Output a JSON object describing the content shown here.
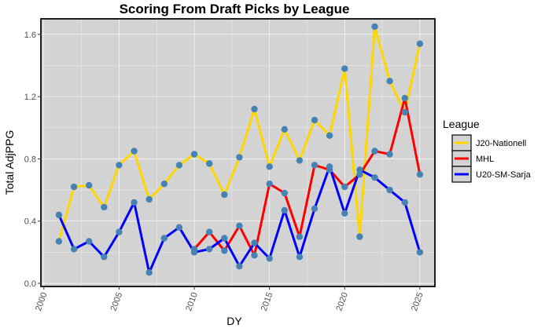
{
  "chart_data": {
    "type": "line",
    "title": "Scoring From Draft Picks by League",
    "xlabel": "DY",
    "ylabel": "Total AdjPPG",
    "xlim": [
      1999.8,
      2026.0
    ],
    "ylim": [
      -0.02,
      1.7
    ],
    "x_ticks": [
      2000,
      2005,
      2010,
      2015,
      2020,
      2025
    ],
    "x_tick_labels": [
      "2000",
      "2005",
      "2010",
      "2015",
      "2020",
      "2025"
    ],
    "y_ticks": [
      0.0,
      0.4,
      0.8,
      1.2,
      1.6
    ],
    "y_tick_labels": [
      "0.0",
      "0.4",
      "0.8",
      "1.2",
      "1.6"
    ],
    "grid": true,
    "legend_title": "League",
    "legend_position": "right",
    "point_color": "#4682b4",
    "panel_background": "#d3d3d3",
    "series": [
      {
        "name": "J20-Nationell",
        "color": "#ffd700",
        "points": [
          [
            2001,
            0.27
          ],
          [
            2002,
            0.62
          ],
          [
            2003,
            0.63
          ],
          [
            2004,
            0.49
          ],
          [
            2005,
            0.76
          ],
          [
            2006,
            0.85
          ],
          [
            2007,
            0.54
          ],
          [
            2008,
            0.64
          ],
          [
            2009,
            0.76
          ],
          [
            2010,
            0.83
          ],
          [
            2011,
            0.77
          ],
          [
            2012,
            0.57
          ],
          [
            2013,
            0.81
          ],
          [
            2014,
            1.12
          ],
          [
            2015,
            0.75
          ],
          [
            2016,
            0.99
          ],
          [
            2017,
            0.79
          ],
          [
            2018,
            1.05
          ],
          [
            2019,
            0.95
          ],
          [
            2020,
            1.38
          ],
          [
            2021,
            0.3
          ],
          [
            2022,
            1.65
          ],
          [
            2023,
            1.3
          ],
          [
            2024,
            1.1
          ],
          [
            2025,
            1.54
          ]
        ]
      },
      {
        "name": "MHL",
        "color": "#ff0000",
        "points": [
          [
            2010,
            0.22
          ],
          [
            2011,
            0.33
          ],
          [
            2012,
            0.21
          ],
          [
            2013,
            0.37
          ],
          [
            2014,
            0.18
          ],
          [
            2015,
            0.64
          ],
          [
            2016,
            0.58
          ],
          [
            2017,
            0.3
          ],
          [
            2018,
            0.76
          ],
          [
            2019,
            0.73
          ],
          [
            2020,
            0.62
          ],
          [
            2021,
            0.7
          ],
          [
            2022,
            0.85
          ],
          [
            2023,
            0.83
          ],
          [
            2024,
            1.19
          ],
          [
            2025,
            0.7
          ]
        ]
      },
      {
        "name": "U20-SM-Sarja",
        "color": "#0000ff",
        "points": [
          [
            2001,
            0.44
          ],
          [
            2002,
            0.22
          ],
          [
            2003,
            0.27
          ],
          [
            2004,
            0.17
          ],
          [
            2005,
            0.33
          ],
          [
            2006,
            0.52
          ],
          [
            2007,
            0.07
          ],
          [
            2008,
            0.29
          ],
          [
            2009,
            0.36
          ],
          [
            2010,
            0.2
          ],
          [
            2011,
            0.22
          ],
          [
            2012,
            0.29
          ],
          [
            2013,
            0.11
          ],
          [
            2014,
            0.26
          ],
          [
            2015,
            0.16
          ],
          [
            2016,
            0.47
          ],
          [
            2017,
            0.17
          ],
          [
            2018,
            0.48
          ],
          [
            2019,
            0.75
          ],
          [
            2020,
            0.45
          ],
          [
            2021,
            0.73
          ],
          [
            2022,
            0.68
          ],
          [
            2023,
            0.6
          ],
          [
            2024,
            0.52
          ],
          [
            2025,
            0.2
          ]
        ]
      }
    ]
  }
}
